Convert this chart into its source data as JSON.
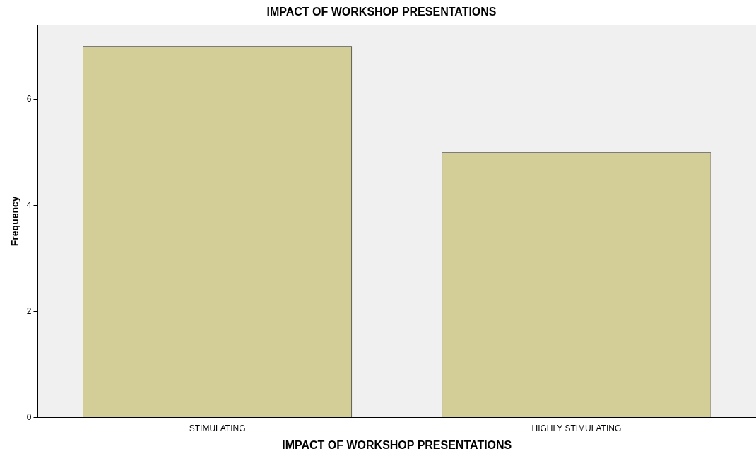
{
  "chart_data": {
    "type": "bar",
    "title": "IMPACT OF WORKSHOP PRESENTATIONS",
    "xlabel": "IMPACT OF WORKSHOP PRESENTATIONS",
    "ylabel": "Frequency",
    "categories": [
      "STIMULATING",
      "HIGHLY STIMULATING"
    ],
    "values": [
      7,
      5
    ],
    "color": "#d3ce97",
    "ylim": [
      0,
      7.4
    ],
    "yticks": [
      0,
      2,
      4,
      6
    ],
    "grid": false,
    "legend": false
  }
}
